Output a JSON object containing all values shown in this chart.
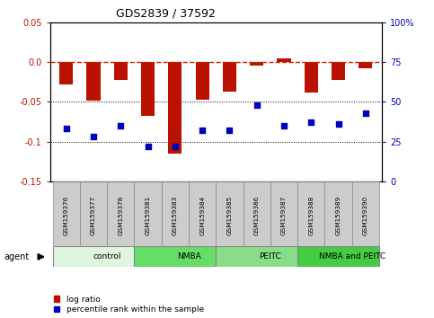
{
  "title": "GDS2839 / 37592",
  "samples": [
    "GSM159376",
    "GSM159377",
    "GSM159378",
    "GSM159381",
    "GSM159383",
    "GSM159384",
    "GSM159385",
    "GSM159386",
    "GSM159387",
    "GSM159388",
    "GSM159389",
    "GSM159390"
  ],
  "log_ratio": [
    -0.028,
    -0.048,
    -0.022,
    -0.068,
    -0.115,
    -0.047,
    -0.037,
    -0.005,
    0.005,
    -0.038,
    -0.022,
    -0.008
  ],
  "percentile_rank": [
    33,
    28,
    35,
    22,
    22,
    32,
    32,
    48,
    35,
    37,
    36,
    43
  ],
  "groups": [
    {
      "label": "control",
      "start": 0,
      "end": 3,
      "color": "#e0f5e0"
    },
    {
      "label": "NMBA",
      "start": 3,
      "end": 6,
      "color": "#66dd66"
    },
    {
      "label": "PEITC",
      "start": 6,
      "end": 9,
      "color": "#88dd88"
    },
    {
      "label": "NMBA and PEITC",
      "start": 9,
      "end": 12,
      "color": "#44cc44"
    }
  ],
  "ylim_left": [
    -0.15,
    0.05
  ],
  "ylim_right": [
    0,
    100
  ],
  "yticks_left": [
    -0.15,
    -0.1,
    -0.05,
    0.0,
    0.05
  ],
  "yticks_right": [
    0,
    25,
    50,
    75,
    100
  ],
  "bar_color": "#bb1100",
  "dot_color": "#0000bb",
  "hline_color": "#cc2200",
  "dotline_color": "#000000",
  "legend_items": [
    "log ratio",
    "percentile rank within the sample"
  ],
  "agent_label": "agent",
  "sample_box_color": "#cccccc",
  "bar_width": 0.5
}
